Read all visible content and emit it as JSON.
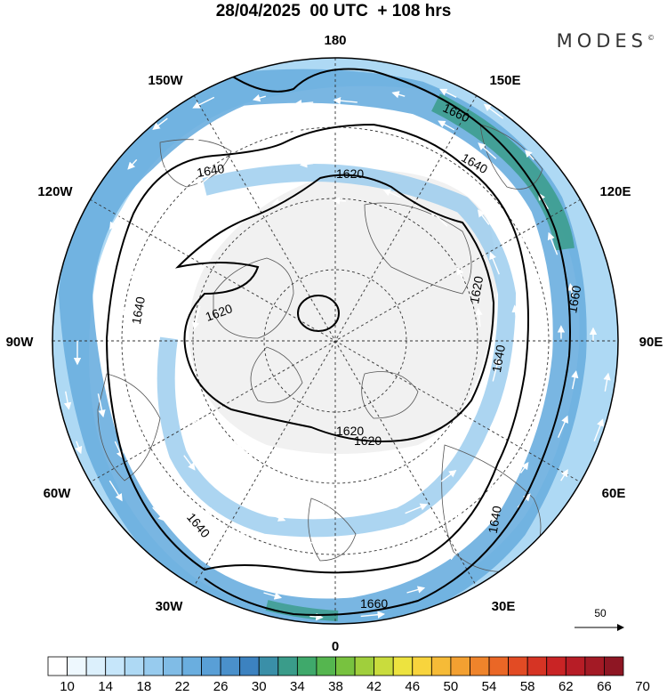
{
  "header": {
    "title": "28/04/2025  00 UTC  + 108 hrs",
    "brand": "MODES",
    "brand_mark": "©"
  },
  "map": {
    "projection": "north-polar-stereographic",
    "longitude_labels": [
      "180",
      "150E",
      "120E",
      "90E",
      "60E",
      "30E",
      "0",
      "30W",
      "60W",
      "90W",
      "120W",
      "150W"
    ],
    "contours": [
      {
        "value": "1620",
        "label": "1620"
      },
      {
        "value": "1640",
        "label": "1640"
      },
      {
        "value": "1660",
        "label": "1660"
      }
    ],
    "contour_labels": [
      "1660",
      "1640",
      "1620",
      "1640",
      "1620",
      "1620",
      "1640",
      "1620",
      "1640",
      "1640",
      "1620",
      "1660",
      "1640",
      "1660"
    ],
    "reference_vector": {
      "label": "50",
      "icon": "arrow-right-icon"
    }
  },
  "colorbar": {
    "labels": [
      "10",
      "14",
      "18",
      "22",
      "26",
      "30",
      "34",
      "38",
      "42",
      "46",
      "50",
      "54",
      "58",
      "62",
      "66",
      "70"
    ],
    "colors": [
      "#ffffff",
      "#eef8fe",
      "#dcf0fc",
      "#c6e6fa",
      "#aed9f4",
      "#97cbee",
      "#80bce6",
      "#6aaedf",
      "#599fd6",
      "#4a90cb",
      "#3c82c0",
      "#3a8fa8",
      "#3a9c8a",
      "#3fa96b",
      "#55b64f",
      "#78c23f",
      "#a0cf3c",
      "#c9dc3d",
      "#ede33f",
      "#f8d43d",
      "#f6bb37",
      "#f3a031",
      "#ef842b",
      "#ea6726",
      "#e24b24",
      "#d63424",
      "#c92425",
      "#b71d26",
      "#a31a25",
      "#8e1623"
    ]
  }
}
